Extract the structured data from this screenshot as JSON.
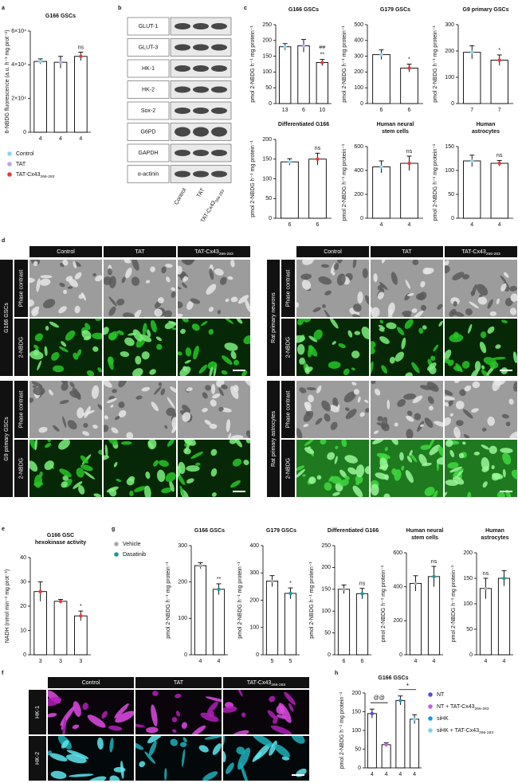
{
  "panel_letters": [
    "a",
    "b",
    "c",
    "d",
    "e",
    "f",
    "g",
    "h"
  ],
  "legend_a": {
    "names": [
      "Control",
      "TAT",
      {
        "text": "TAT-Cx43",
        "sub": "266-283"
      }
    ],
    "colors": [
      "#8fd3f0",
      "#b3a9e6",
      "#e8383d"
    ]
  },
  "blot": {
    "proteins": [
      "GLUT-1",
      "GLUT-3",
      "HK-1",
      "HK-2",
      "Sox-2",
      "G6PD",
      "GAPDH",
      "α-actinin"
    ],
    "lanes": [
      "Control",
      "TAT",
      {
        "text": "TAT-Cx43",
        "sub": "266-283"
      }
    ]
  },
  "imaging_d": {
    "left": {
      "columns": [
        "Control",
        "TAT",
        {
          "text": "TAT-Cx43",
          "sub": "266-283"
        }
      ],
      "groups": [
        {
          "label": "G166 GSCs",
          "rows": [
            "Phase contrast",
            "2-NBDG"
          ]
        },
        {
          "label": "G9 primary GSCs",
          "rows": [
            "Phase contrast",
            "2-NBDG"
          ]
        }
      ]
    },
    "right": {
      "columns": [
        "Control",
        "TAT",
        {
          "text": "TAT-Cx43",
          "sub": "266-283"
        }
      ],
      "groups": [
        {
          "label": "Rat primary neurons",
          "rows": [
            "Phase contrast",
            "2-NBDG"
          ]
        },
        {
          "label": "Rat primary astrocytes",
          "rows": [
            "Phase contrast",
            "2-NBDG"
          ]
        }
      ]
    }
  },
  "imaging_f": {
    "columns": [
      "Control",
      "TAT",
      {
        "text": "TAT-Cx43",
        "sub": "266-283"
      }
    ],
    "rows": [
      "HK-1",
      "HK-2"
    ]
  },
  "legend_g": {
    "names": [
      "Vehicle",
      "Dasatinib"
    ],
    "colors": [
      "#aaaaaa",
      "#1a9a9a"
    ]
  },
  "legend_h": {
    "names": [
      "NT",
      {
        "text": "NT + TAT-Cx43",
        "sub": "266-283"
      },
      "siHK",
      {
        "text": "siHK + TAT-Cx43",
        "sub": "266-283"
      }
    ],
    "colors": [
      "#5a4fcf",
      "#c060e0",
      "#1a9ad6",
      "#7fd0ee"
    ]
  },
  "chart_data": [
    {
      "type": "bar",
      "title": [
        "G166 GSCs"
      ],
      "ylabel": "6-NBDG fluorescence (a.u. h⁻¹ mg prot⁻¹)",
      "categories": [
        "4",
        "4",
        "4"
      ],
      "values": [
        42000,
        41500,
        45000
      ],
      "errors": [
        1500,
        3500,
        2500
      ],
      "colors": [
        "#8fd3f0",
        "#b3a9e6",
        "#e8383d"
      ],
      "ylim": [
        0,
        60000
      ],
      "yticks": [
        0,
        {
          "value": 20000,
          "label": "2×10⁴"
        },
        {
          "value": 40000,
          "label": "4×10⁴"
        },
        {
          "value": 60000,
          "label": "6×10⁴"
        }
      ],
      "annotations": [
        null,
        null,
        "ns"
      ]
    },
    {
      "type": "bar",
      "title": [
        "G166 GSCs"
      ],
      "ylabel": "pmol 2-NBDG h⁻¹ mg protein⁻¹",
      "categories": [
        "13",
        "6",
        "10"
      ],
      "values": [
        180,
        183,
        130
      ],
      "errors": [
        10,
        20,
        10
      ],
      "colors": [
        "#8fd3f0",
        "#b3a9e6",
        "#e8383d"
      ],
      "ylim": [
        0,
        250
      ],
      "yticks": [
        0,
        50,
        100,
        150,
        200,
        250
      ],
      "annotations": [
        null,
        null,
        [
          "##",
          "**"
        ]
      ]
    },
    {
      "type": "bar",
      "title": [
        "G179 GSCs"
      ],
      "ylabel": "pmol 2-NBDG h⁻¹ mg protein⁻¹",
      "categories": [
        "6",
        "6"
      ],
      "values": [
        310,
        225
      ],
      "errors": [
        30,
        25
      ],
      "colors": [
        "#8fd3f0",
        "#e8383d"
      ],
      "ylim": [
        0,
        500
      ],
      "yticks": [
        0,
        100,
        200,
        300,
        400,
        500
      ],
      "annotations": [
        null,
        "*"
      ]
    },
    {
      "type": "bar",
      "title": [
        "G9 primary GSCs"
      ],
      "ylabel": "pmol 2-NBDG h⁻¹ mg protein⁻¹",
      "categories": [
        "7",
        "7"
      ],
      "values": [
        195,
        165
      ],
      "errors": [
        25,
        20
      ],
      "colors": [
        "#8fd3f0",
        "#e8383d"
      ],
      "ylim": [
        0,
        300
      ],
      "yticks": [
        0,
        100,
        200,
        300
      ],
      "annotations": [
        null,
        "*"
      ]
    },
    {
      "type": "bar",
      "title": [
        "Differentiated G166"
      ],
      "ylabel": "pmol 2-NBDG h⁻¹ mg protein⁻¹",
      "categories": [
        "6",
        "6"
      ],
      "values": [
        143,
        150
      ],
      "errors": [
        8,
        15
      ],
      "colors": [
        "#8fd3f0",
        "#e8383d"
      ],
      "ylim": [
        0,
        200
      ],
      "yticks": [
        0,
        50,
        100,
        150,
        200
      ],
      "annotations": [
        null,
        "ns"
      ]
    },
    {
      "type": "bar",
      "title": [
        "Human neural",
        "stem cells"
      ],
      "ylabel": "pmol 2-NBDG h⁻¹ mg protein⁻¹",
      "categories": [
        "4",
        "4"
      ],
      "values": [
        430,
        460
      ],
      "errors": [
        50,
        60
      ],
      "colors": [
        "#8fd3f0",
        "#e8383d"
      ],
      "ylim": [
        0,
        600
      ],
      "yticks": [
        0,
        200,
        400,
        600
      ],
      "annotations": [
        null,
        "ns"
      ]
    },
    {
      "type": "bar",
      "title": [
        "Human",
        "astrocytes"
      ],
      "ylabel": "pmol 2-NBDG h⁻¹ mg protein⁻¹",
      "categories": [
        "4",
        "4"
      ],
      "values": [
        120,
        115
      ],
      "errors": [
        12,
        6
      ],
      "colors": [
        "#8fd3f0",
        "#e8383d"
      ],
      "ylim": [
        0,
        150
      ],
      "yticks": [
        0,
        50,
        100,
        150
      ],
      "annotations": [
        null,
        "ns"
      ]
    },
    {
      "type": "bar",
      "title": [
        "G166 GSC",
        "hexokinase activity"
      ],
      "ylabel": "NADH (nmol min⁻¹ mg prot⁻¹)",
      "categories": [
        "3",
        "3",
        "3"
      ],
      "values": [
        26,
        22,
        16
      ],
      "errors": [
        4,
        0.8,
        2
      ],
      "colors": [
        "#e8383d",
        "#e8383d",
        "#e8383d"
      ],
      "ylim": [
        0,
        40
      ],
      "yticks": [
        0,
        10,
        20,
        30,
        40
      ],
      "annotations": [
        null,
        null,
        "*"
      ]
    },
    {
      "type": "bar",
      "title": [
        "G166 GSCs"
      ],
      "ylabel": "pmol 2-NBDG h⁻¹ mg protein⁻¹",
      "categories": [
        "4",
        "4"
      ],
      "values": [
        245,
        180
      ],
      "errors": [
        8,
        15
      ],
      "colors": [
        "#aaaaaa",
        "#1a9a9a"
      ],
      "ylim": [
        0,
        300
      ],
      "yticks": [
        0,
        100,
        200,
        300
      ],
      "annotations": [
        null,
        "**"
      ]
    },
    {
      "type": "bar",
      "title": [
        "G179 GSCs"
      ],
      "ylabel": "pmol 2-NBDG h⁻¹ mg protein⁻¹",
      "categories": [
        "5",
        "5"
      ],
      "values": [
        270,
        225
      ],
      "errors": [
        20,
        20
      ],
      "colors": [
        "#aaaaaa",
        "#1a9a9a"
      ],
      "ylim": [
        0,
        400
      ],
      "yticks": [
        0,
        100,
        200,
        300,
        400
      ],
      "annotations": [
        null,
        "*"
      ]
    },
    {
      "type": "bar",
      "title": [
        "Differentiated G166"
      ],
      "ylabel": "pmol 2-NBDG h⁻¹ mg protein⁻¹",
      "categories": [
        "6",
        "6"
      ],
      "values": [
        150,
        140
      ],
      "errors": [
        10,
        12
      ],
      "colors": [
        "#aaaaaa",
        "#1a9a9a"
      ],
      "ylim": [
        0,
        250
      ],
      "yticks": [
        0,
        50,
        100,
        150,
        200,
        250
      ],
      "annotations": [
        null,
        "ns"
      ]
    },
    {
      "type": "bar",
      "title": [
        "Human neural",
        "stem cells"
      ],
      "ylabel": "pmol 2-NBDG h⁻¹ mg protein⁻¹",
      "categories": [
        "4",
        "4"
      ],
      "values": [
        420,
        460
      ],
      "errors": [
        45,
        60
      ],
      "colors": [
        "#aaaaaa",
        "#1a9a9a"
      ],
      "ylim": [
        0,
        600
      ],
      "yticks": [
        0,
        200,
        400,
        600
      ],
      "annotations": [
        null,
        "ns"
      ]
    },
    {
      "type": "bar",
      "title": [
        "Human",
        "astrocytes"
      ],
      "ylabel": "pmol 2-NBDG h⁻¹ mg protein⁻¹",
      "categories": [
        "4",
        "4"
      ],
      "values": [
        130,
        150
      ],
      "errors": [
        20,
        15
      ],
      "colors": [
        "#aaaaaa",
        "#1a9a9a"
      ],
      "ylim": [
        0,
        200
      ],
      "yticks": [
        0,
        50,
        100,
        150,
        200
      ],
      "annotations": [
        "ns",
        null
      ]
    },
    {
      "type": "bar",
      "title": [
        "G166 GSCs"
      ],
      "ylabel": "pmol 2-NBDG h⁻¹ mg protein⁻¹",
      "categories": [
        "4",
        "4",
        "4",
        "4"
      ],
      "values": [
        145,
        62,
        180,
        130
      ],
      "errors": [
        12,
        5,
        12,
        12
      ],
      "colors": [
        "#5a4fcf",
        "#c060e0",
        "#1a9ad6",
        "#7fd0ee"
      ],
      "ylim": [
        0,
        200
      ],
      "yticks": [
        0,
        50,
        100,
        150,
        200
      ],
      "annotations": [
        "@@",
        null,
        "+",
        null
      ],
      "bracket": true
    }
  ]
}
